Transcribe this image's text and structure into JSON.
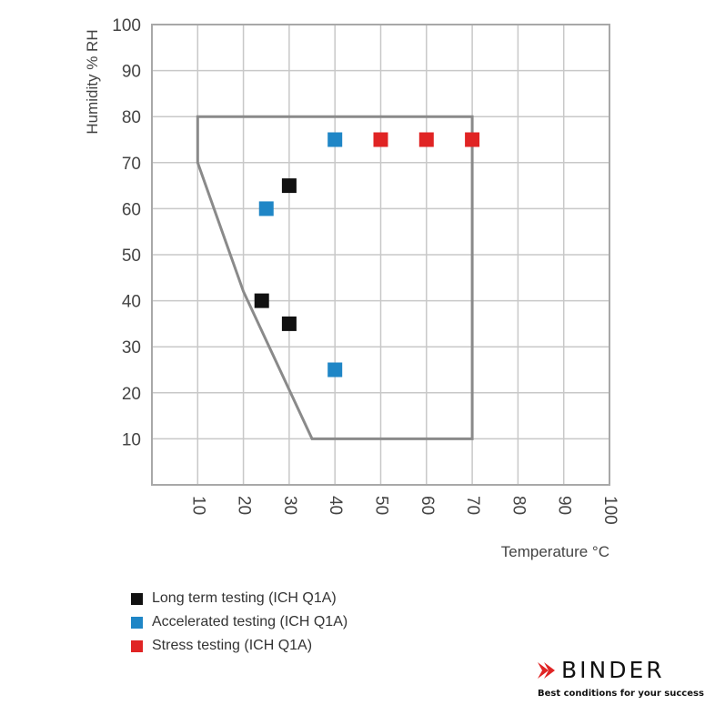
{
  "chart_data": {
    "type": "scatter",
    "title": "",
    "xlabel": "Temperature °C",
    "ylabel": "Humidity % RH",
    "xlim": [
      0,
      100
    ],
    "ylim": [
      0,
      100
    ],
    "x_ticks": [
      10,
      20,
      30,
      40,
      50,
      60,
      70,
      80,
      90,
      100
    ],
    "y_ticks": [
      10,
      20,
      30,
      40,
      50,
      60,
      70,
      80,
      90,
      100
    ],
    "grid": true,
    "operating_range_polygon": [
      [
        10,
        80
      ],
      [
        70,
        80
      ],
      [
        70,
        10
      ],
      [
        35,
        10
      ],
      [
        20,
        42
      ],
      [
        10,
        70
      ]
    ],
    "series": [
      {
        "name": "Long term testing (ICH Q1A)",
        "color": "#111111",
        "points": [
          [
            30,
            65
          ],
          [
            24,
            40
          ],
          [
            30,
            35
          ]
        ]
      },
      {
        "name": "Accelerated testing (ICH Q1A)",
        "color": "#1f86c6",
        "points": [
          [
            40,
            75
          ],
          [
            25,
            60
          ],
          [
            40,
            25
          ]
        ]
      },
      {
        "name": "Stress testing (ICH Q1A)",
        "color": "#e02424",
        "points": [
          [
            50,
            75
          ],
          [
            60,
            75
          ],
          [
            70,
            75
          ]
        ]
      }
    ],
    "legend_position": "bottom-left"
  },
  "legend": [
    {
      "label": "Long term testing (ICH Q1A)",
      "color": "#111111"
    },
    {
      "label": "Accelerated testing (ICH Q1A)",
      "color": "#1f86c6"
    },
    {
      "label": "Stress testing (ICH Q1A)",
      "color": "#e02424"
    }
  ],
  "logo": {
    "name": "BINDER",
    "tagline": "Best conditions for your success",
    "accent": "#e02424"
  }
}
